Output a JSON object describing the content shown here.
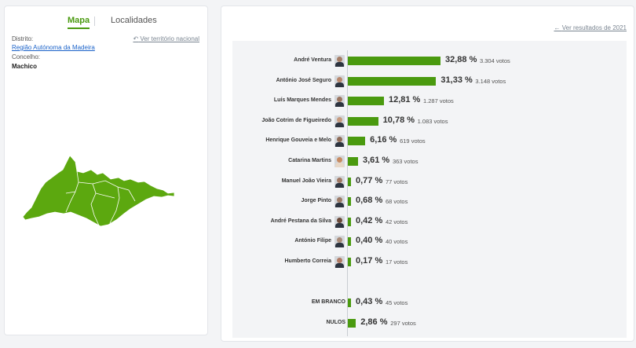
{
  "tabs": {
    "map_label": "Mapa",
    "localities_label": "Localidades"
  },
  "location": {
    "district_label": "Distrito:",
    "district_value": "Região Autónoma da Madeira",
    "council_label": "Concelho:",
    "council_value": "Machico",
    "national_link": "Ver território nacional"
  },
  "results": {
    "prev_link": "Ver resultados de 2021",
    "candidates": [
      {
        "name": "André Ventura",
        "pct": 32.88,
        "pct_label": "32,88 %",
        "votes_label": "3.304 votos"
      },
      {
        "name": "António José Seguro",
        "pct": 31.33,
        "pct_label": "31,33 %",
        "votes_label": "3.148 votos"
      },
      {
        "name": "Luís Marques Mendes",
        "pct": 12.81,
        "pct_label": "12,81 %",
        "votes_label": "1.287 votos"
      },
      {
        "name": "João Cotrim de Figueiredo",
        "pct": 10.78,
        "pct_label": "10,78 %",
        "votes_label": "1.083 votos"
      },
      {
        "name": "Henrique Gouveia e Melo",
        "pct": 6.16,
        "pct_label": "6,16 %",
        "votes_label": "619 votos"
      },
      {
        "name": "Catarina Martins",
        "pct": 3.61,
        "pct_label": "3,61 %",
        "votes_label": "363 votos"
      },
      {
        "name": "Manuel João Vieira",
        "pct": 0.77,
        "pct_label": "0,77 %",
        "votes_label": "77 votos"
      },
      {
        "name": "Jorge Pinto",
        "pct": 0.68,
        "pct_label": "0,68 %",
        "votes_label": "68 votos"
      },
      {
        "name": "André Pestana da Silva",
        "pct": 0.42,
        "pct_label": "0,42 %",
        "votes_label": "42 votos"
      },
      {
        "name": "António Filipe",
        "pct": 0.4,
        "pct_label": "0,40 %",
        "votes_label": "40 votos"
      },
      {
        "name": "Humberto Correia",
        "pct": 0.17,
        "pct_label": "0,17 %",
        "votes_label": "17 votos"
      }
    ],
    "others": [
      {
        "name": "EM BRANCO",
        "pct": 0.43,
        "pct_label": "0,43 %",
        "votes_label": "45 votos"
      },
      {
        "name": "NULOS",
        "pct": 2.86,
        "pct_label": "2,86 %",
        "votes_label": "297 votos"
      }
    ]
  },
  "colors": {
    "accent": "#4a9a0f",
    "map_fill": "#5ca80f",
    "link": "#1a62c9"
  }
}
